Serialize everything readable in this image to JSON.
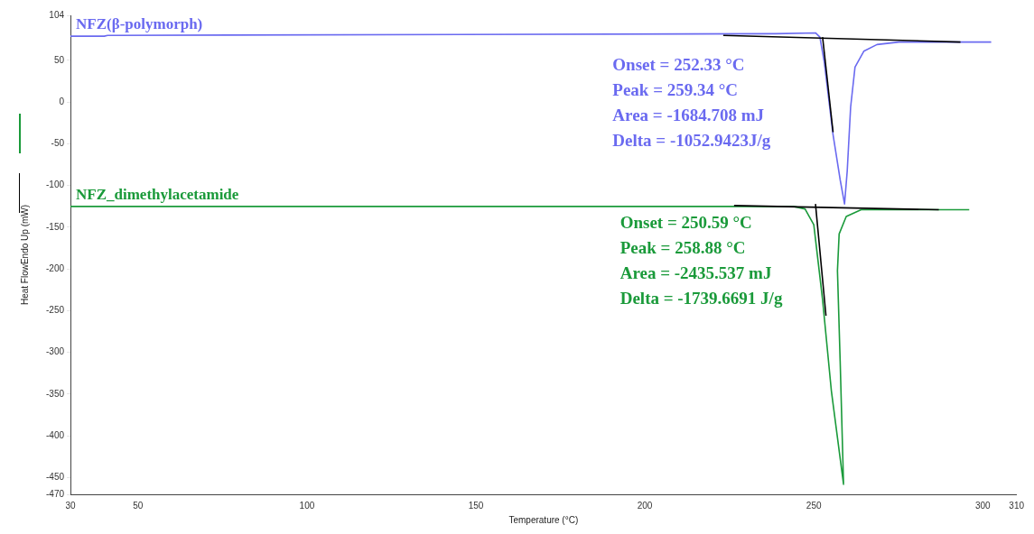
{
  "chart_data": {
    "type": "line",
    "xlabel": "Temperature (°C)",
    "ylabel": "Heat FlowEndo Up (mW)",
    "xlim": [
      30,
      310
    ],
    "xticks": [
      30,
      50,
      100,
      150,
      200,
      250,
      300,
      310
    ],
    "ylim": [
      -470,
      104
    ],
    "yticks": [
      104,
      50,
      0,
      -50,
      -100,
      -150,
      -200,
      -250,
      -300,
      -350,
      -400,
      -450,
      -470
    ],
    "grid": false,
    "legend": false,
    "marker": "none",
    "line_style": "solid",
    "series": [
      {
        "name": "NFZ(β-polymorph)",
        "color": "#6a6af0",
        "x": [
          30,
          40,
          41,
          238.8,
          250.5,
          251.8,
          253.1,
          255.7,
          257.8,
          259.1,
          259.9,
          260.9,
          262.2,
          264.8,
          268.7,
          275.2,
          302.5
        ],
        "values": [
          79,
          79,
          80,
          82,
          83,
          78,
          48,
          -39,
          -93,
          -122,
          -82,
          -6,
          42,
          61,
          69,
          72,
          72
        ]
      },
      {
        "name": "NFZ_dimethylacetamide",
        "color": "#1a9a3a",
        "x": [
          30,
          244,
          247.4,
          250,
          252.6,
          255.2,
          258.8,
          257.8,
          257,
          257.5,
          259.6,
          264,
          270,
          296
        ],
        "values": [
          -125,
          -125,
          -128,
          -147,
          -237,
          -346,
          -458,
          -310,
          -202,
          -158,
          -137,
          -129,
          -129,
          -129
        ]
      },
      {
        "color": "#000000",
        "x": [
          223.2,
          293.4
        ],
        "values": [
          80,
          72
        ]
      },
      {
        "color": "#000000",
        "x": [
          252.6,
          255.7
        ],
        "values": [
          78,
          -36
        ]
      },
      {
        "color": "#000000",
        "x": [
          226.4,
          287
        ],
        "values": [
          -124,
          -129
        ]
      },
      {
        "color": "#000000",
        "x": [
          250.5,
          253.6
        ],
        "values": [
          -122,
          -256
        ]
      }
    ],
    "annotations": [
      "Onset = 252.33 °C",
      "Peak = 259.34 °C",
      "Area = -1684.708 mJ",
      "Delta = -1052.9423J/g",
      "Onset = 250.59 °C",
      "Peak = 258.88 °C",
      "Area = -2435.537 mJ",
      "Delta = -1739.6691 J/g"
    ]
  }
}
